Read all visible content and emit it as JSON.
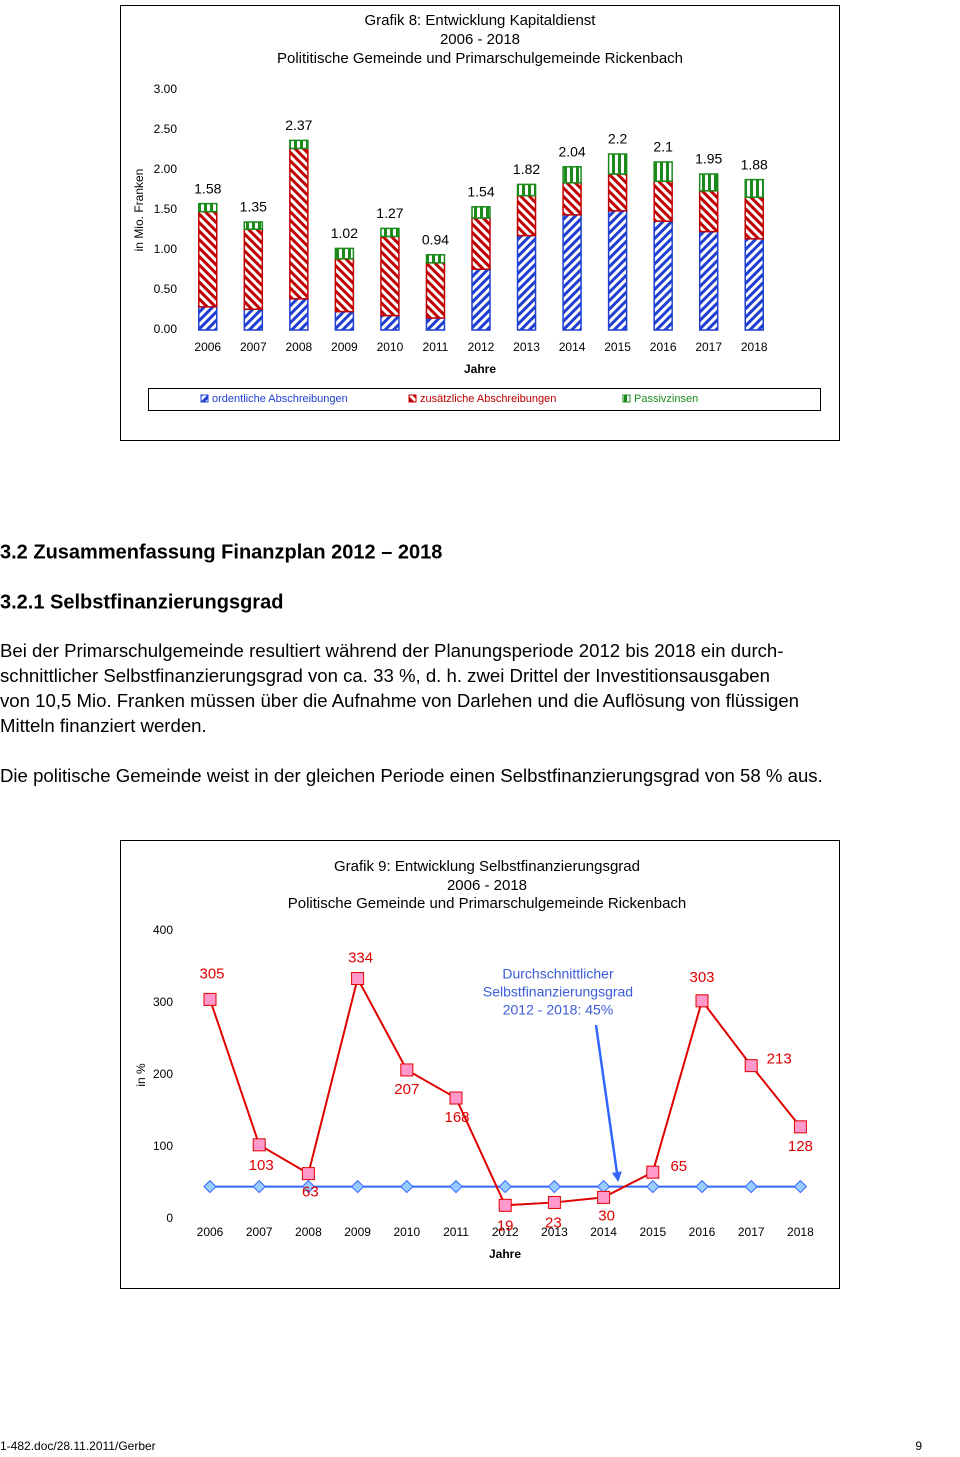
{
  "chart_data": [
    {
      "type": "bar",
      "stacked": true,
      "title": [
        "Grafik 8: Entwicklung Kapitaldienst",
        "2006 - 2018",
        "Polititische Gemeinde und Primarschulgemeinde Rickenbach"
      ],
      "categories": [
        "2006",
        "2007",
        "2008",
        "2009",
        "2010",
        "2011",
        "2012",
        "2013",
        "2014",
        "2015",
        "2016",
        "2017",
        "2018"
      ],
      "series": [
        {
          "name": "ordentliche Abschreibungen",
          "color": "#1f3fd0",
          "values": [
            0.29,
            0.26,
            0.39,
            0.23,
            0.18,
            0.15,
            0.76,
            1.18,
            1.44,
            1.49,
            1.36,
            1.23,
            1.14
          ]
        },
        {
          "name": "zusätzliche Abschreibungen",
          "color": "#c00000",
          "values": [
            1.19,
            1.0,
            1.88,
            0.66,
            0.99,
            0.69,
            0.64,
            0.5,
            0.4,
            0.46,
            0.5,
            0.51,
            0.52
          ]
        },
        {
          "name": "Passivzinsen",
          "color": "#1a8a1a",
          "values": [
            0.1,
            0.09,
            0.1,
            0.13,
            0.1,
            0.1,
            0.14,
            0.14,
            0.2,
            0.25,
            0.24,
            0.21,
            0.22
          ]
        }
      ],
      "totals": [
        1.58,
        1.35,
        2.37,
        1.02,
        1.27,
        0.94,
        1.54,
        1.82,
        2.04,
        2.2,
        2.1,
        1.95,
        1.88
      ],
      "ylim": [
        0,
        3
      ],
      "yticks": [
        {
          "value": 0,
          "label": "0.00"
        },
        {
          "value": 0.5,
          "label": "0.50"
        },
        {
          "value": 1,
          "label": "1.00"
        },
        {
          "value": 1.5,
          "label": "1.50"
        },
        {
          "value": 2,
          "label": "2.00"
        },
        {
          "value": 2.5,
          "label": "2.50"
        },
        {
          "value": 3,
          "label": "3.00"
        }
      ],
      "ylabel": "in Mio. Franken",
      "xlabel": "Jahre",
      "legend": "bottom"
    },
    {
      "type": "line",
      "title": [
        "Grafik 9: Entwicklung Selbstfinanzierungsgrad",
        "2006 - 2018",
        "Politische Gemeinde und Primarschulgemeinde Rickenbach"
      ],
      "categories": [
        "2006",
        "2007",
        "2008",
        "2009",
        "2010",
        "2011",
        "2012",
        "2013",
        "2014",
        "2015",
        "2016",
        "2017",
        "2018"
      ],
      "series": [
        {
          "color": "#e00000",
          "marker": "square",
          "marker_color": "#ff99cc",
          "values": [
            305,
            103,
            63,
            334,
            207,
            168,
            19,
            23,
            30,
            65,
            303,
            213,
            128
          ]
        },
        {
          "color": "#3366ff",
          "marker": "diamond",
          "marker_color": "#99ccff",
          "values": [
            45,
            45,
            45,
            45,
            45,
            45,
            45,
            45,
            45,
            45,
            45,
            45,
            45
          ]
        }
      ],
      "ylim": [
        0,
        400
      ],
      "yticks": [
        0,
        100,
        200,
        300,
        400
      ],
      "ylabel": "in %",
      "xlabel": "Jahre",
      "annotation": [
        "Durchschnittlicher",
        "Selbstfinanzierungsgrad",
        "2012 - 2018: 45%"
      ]
    }
  ],
  "document": {
    "heading": "3.2 Zusammenfassung Finanzplan 2012 – 2018",
    "subheading": "3.2.1 Selbstfinanzierungsgrad",
    "paragraphs": [
      [
        "Bei der Primarschulgemeinde resultiert während der Planungsperiode 2012 bis 2018 ein durch-",
        "schnittlicher Selbstfinanzierungsgrad von ca. 33 %, d. h. zwei Drittel der Investitionsausgaben",
        "von 10,5 Mio. Franken müssen über die Aufnahme von Darlehen und die Auflösung von flüssigen",
        "Mitteln finanziert werden."
      ],
      [
        "Die politische Gemeinde weist in der gleichen Periode einen Selbstfinanzierungsgrad von 58 % aus."
      ]
    ]
  },
  "footer": {
    "left": "1-482.doc/28.11.2011/Gerber",
    "right": "9"
  }
}
